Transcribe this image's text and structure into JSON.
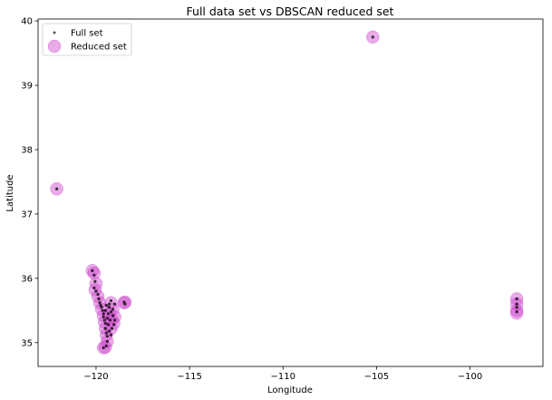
{
  "chart_data": {
    "type": "scatter",
    "title": "Full data set vs DBSCAN reduced set",
    "xlabel": "Longitude",
    "ylabel": "Latitude",
    "xlim": [
      -123.1,
      -96.1
    ],
    "ylim": [
      34.63,
      40.03
    ],
    "xticks": [
      {
        "value": -120,
        "label": "−120"
      },
      {
        "value": -115,
        "label": "−115"
      },
      {
        "value": -110,
        "label": "−110"
      },
      {
        "value": -105,
        "label": "−105"
      },
      {
        "value": -100,
        "label": "−100"
      }
    ],
    "yticks": [
      {
        "value": 35,
        "label": "35"
      },
      {
        "value": 36,
        "label": "36"
      },
      {
        "value": 37,
        "label": "37"
      },
      {
        "value": 38,
        "label": "38"
      },
      {
        "value": 39,
        "label": "39"
      },
      {
        "value": 40,
        "label": "40"
      }
    ],
    "grid": false,
    "legend_position": "top-left",
    "series": [
      {
        "name": "Full set",
        "marker": "small-dot",
        "color": "#000000",
        "points": [
          [
            -122.1,
            37.39
          ],
          [
            -105.2,
            39.75
          ],
          [
            -120.2,
            36.12
          ],
          [
            -120.1,
            36.05
          ],
          [
            -120.05,
            35.95
          ],
          [
            -120.1,
            35.85
          ],
          [
            -120.0,
            35.8
          ],
          [
            -119.9,
            35.75
          ],
          [
            -119.85,
            35.68
          ],
          [
            -119.8,
            35.62
          ],
          [
            -119.75,
            35.58
          ],
          [
            -119.7,
            35.55
          ],
          [
            -119.65,
            35.5
          ],
          [
            -119.6,
            35.45
          ],
          [
            -119.6,
            35.4
          ],
          [
            -119.55,
            35.35
          ],
          [
            -119.5,
            35.3
          ],
          [
            -119.5,
            35.22
          ],
          [
            -119.45,
            35.15
          ],
          [
            -119.4,
            35.1
          ],
          [
            -119.4,
            35.02
          ],
          [
            -119.45,
            34.95
          ],
          [
            -119.6,
            34.92
          ],
          [
            -119.3,
            35.55
          ],
          [
            -119.2,
            35.48
          ],
          [
            -119.1,
            35.42
          ],
          [
            -119.0,
            35.35
          ],
          [
            -119.05,
            35.28
          ],
          [
            -119.15,
            35.22
          ],
          [
            -119.25,
            35.35
          ],
          [
            -119.35,
            35.45
          ],
          [
            -119.3,
            35.6
          ],
          [
            -119.2,
            35.65
          ],
          [
            -119.0,
            35.6
          ],
          [
            -119.1,
            35.52
          ],
          [
            -119.4,
            35.38
          ],
          [
            -119.35,
            35.28
          ],
          [
            -119.3,
            35.18
          ],
          [
            -119.2,
            35.12
          ],
          [
            -119.5,
            35.5
          ],
          [
            -119.45,
            35.58
          ],
          [
            -118.5,
            35.63
          ],
          [
            -118.45,
            35.6
          ],
          [
            -97.5,
            35.68
          ],
          [
            -97.5,
            35.6
          ],
          [
            -97.5,
            35.55
          ],
          [
            -97.5,
            35.48
          ]
        ]
      },
      {
        "name": "Reduced set",
        "marker": "large-circle",
        "color": "#cc44cc",
        "points": [
          [
            -122.1,
            37.39
          ],
          [
            -105.2,
            39.75
          ],
          [
            -120.2,
            36.12
          ],
          [
            -120.1,
            36.08
          ],
          [
            -120.0,
            35.92
          ],
          [
            -120.05,
            35.82
          ],
          [
            -119.9,
            35.72
          ],
          [
            -119.8,
            35.62
          ],
          [
            -119.7,
            35.52
          ],
          [
            -119.6,
            35.42
          ],
          [
            -119.55,
            35.32
          ],
          [
            -119.5,
            35.22
          ],
          [
            -119.45,
            35.12
          ],
          [
            -119.4,
            35.02
          ],
          [
            -119.5,
            34.93
          ],
          [
            -119.6,
            34.92
          ],
          [
            -119.2,
            35.62
          ],
          [
            -119.1,
            35.52
          ],
          [
            -119.0,
            35.4
          ],
          [
            -119.05,
            35.3
          ],
          [
            -119.2,
            35.22
          ],
          [
            -119.3,
            35.45
          ],
          [
            -119.15,
            35.35
          ],
          [
            -118.45,
            35.63
          ],
          [
            -118.5,
            35.62
          ],
          [
            -97.5,
            35.68
          ],
          [
            -97.5,
            35.6
          ],
          [
            -97.5,
            35.5
          ],
          [
            -97.5,
            35.46
          ]
        ]
      }
    ]
  }
}
